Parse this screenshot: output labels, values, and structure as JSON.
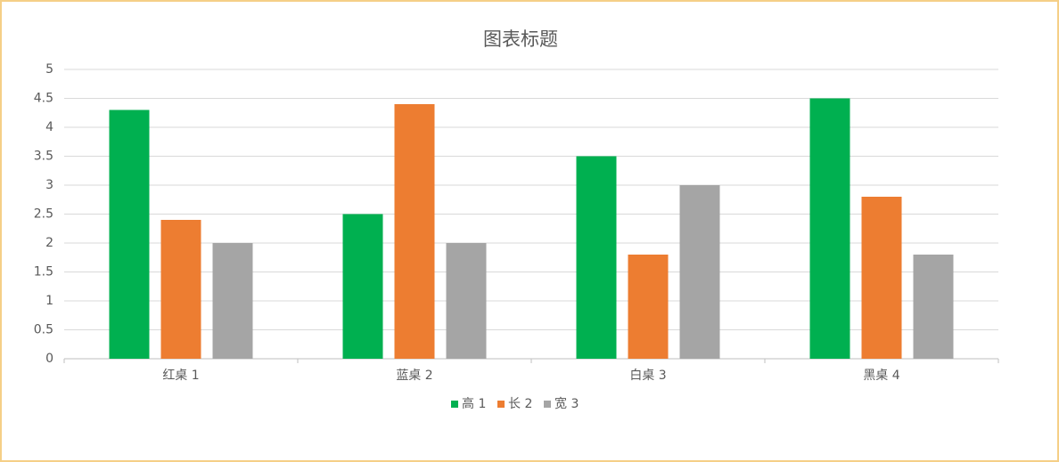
{
  "chart_data": {
    "type": "bar",
    "title": "图表标题",
    "categories": [
      "红桌 1",
      "蓝桌 2",
      "白桌 3",
      "黑桌 4"
    ],
    "series": [
      {
        "name": "高 1",
        "color": "#00b050",
        "values": [
          4.3,
          2.5,
          3.5,
          4.5
        ]
      },
      {
        "name": "长 2",
        "color": "#ed7d31",
        "values": [
          2.4,
          4.4,
          1.8,
          2.8
        ]
      },
      {
        "name": "宽 3",
        "color": "#a5a5a5",
        "values": [
          2,
          2,
          3,
          1.8
        ]
      }
    ],
    "ylim": [
      0,
      5
    ],
    "yticks": [
      0,
      0.5,
      1,
      1.5,
      2,
      2.5,
      3,
      3.5,
      4,
      4.5,
      5
    ],
    "grid": true,
    "legend": "bottom"
  }
}
